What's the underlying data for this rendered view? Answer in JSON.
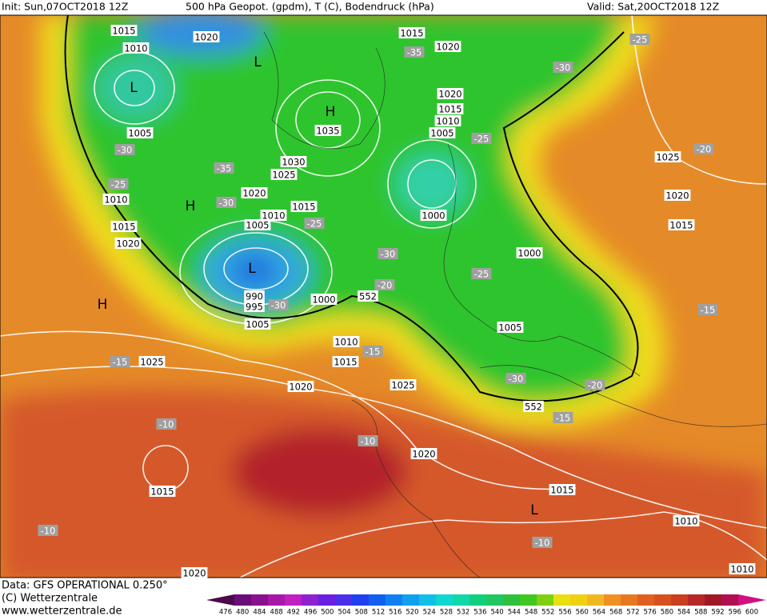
{
  "header": {
    "init": "Init: Sun,07OCT2018 12Z",
    "title": "500 hPa Geopot. (gpdm), T (C), Bodendruck (hPa)",
    "valid": "Valid: Sat,20OCT2018 12Z"
  },
  "footer": {
    "data": "Data: GFS OPERATIONAL 0.250°",
    "copyright": "(C) Wetterzentrale",
    "url": "www.wetterzentrale.de"
  },
  "map": {
    "isobar_labels": [
      "1015",
      "1010",
      "1020",
      "1015",
      "1020",
      "1020",
      "1015",
      "1010",
      "1005",
      "1005",
      "1035",
      "1030",
      "1025",
      "1020",
      "1015",
      "1010",
      "1005",
      "1010",
      "1015",
      "1020",
      "1000",
      "1000",
      "990",
      "995",
      "1000",
      "1005",
      "1010",
      "1015",
      "1025",
      "1020",
      "1025",
      "1005",
      "1020",
      "1015",
      "1015",
      "1010",
      "1010",
      "1025",
      "1020",
      "1015",
      "1020",
      "552",
      "552"
    ],
    "temperature_labels": [
      "-25",
      "-35",
      "-30",
      "-30",
      "-35",
      "-25",
      "-30",
      "-25",
      "-25",
      "-20",
      "-30",
      "-25",
      "-20",
      "-30",
      "-15",
      "-15",
      "-15",
      "-30",
      "-20",
      "-15",
      "-10",
      "-10",
      "-10",
      "-10"
    ],
    "centers": [
      "L",
      "L",
      "H",
      "H",
      "L",
      "H",
      "L"
    ]
  },
  "legend": {
    "labels": [
      "476",
      "480",
      "484",
      "488",
      "492",
      "496",
      "500",
      "504",
      "508",
      "512",
      "516",
      "520",
      "524",
      "528",
      "532",
      "536",
      "540",
      "544",
      "548",
      "552",
      "556",
      "560",
      "564",
      "568",
      "572",
      "576",
      "580",
      "584",
      "588",
      "592",
      "596",
      "600"
    ],
    "colors": [
      "#4b0a4b",
      "#6a0d7a",
      "#8a1090",
      "#a818a8",
      "#c020c0",
      "#9020d0",
      "#6a20e0",
      "#4a30e8",
      "#2040f0",
      "#1060f0",
      "#1080f0",
      "#10a0f0",
      "#10c0e8",
      "#10d8d0",
      "#10d8a8",
      "#10d080",
      "#20c860",
      "#30c040",
      "#40c820",
      "#80d010",
      "#e8e010",
      "#f0d010",
      "#f0b820",
      "#f09020",
      "#e87820",
      "#e06020",
      "#d85020",
      "#c84020",
      "#b82828",
      "#a01828",
      "#b01050",
      "#d01080"
    ]
  }
}
